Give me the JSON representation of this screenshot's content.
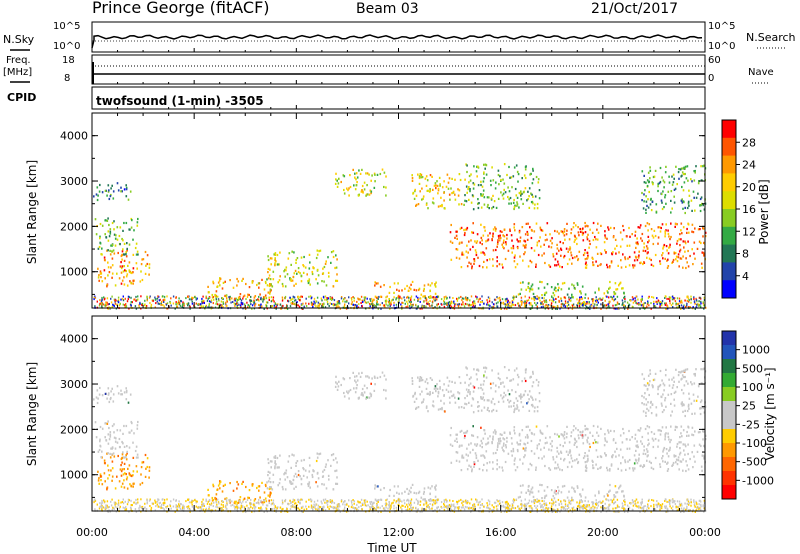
{
  "header": {
    "station": "Prince George (fitACF)",
    "beam": "Beam 03",
    "date": "21/Oct/2017"
  },
  "top_panels": {
    "nsky_label": "N.Sky",
    "nsky_ticks": [
      "10^5",
      "10^0"
    ],
    "nsearch_label": "N.Search",
    "nsearch_ticks": [
      "10^5",
      "10^0"
    ],
    "freq_label": "Freq.",
    "freq_unit": "[MHz]",
    "freq_ticks": [
      "18",
      "8"
    ],
    "nave_label": "Nave",
    "nave_ticks": [
      "60",
      "0"
    ],
    "cpid_label": "CPID",
    "cpid_text": "twofsound (1-min) -3505"
  },
  "axes": {
    "ylabel": "Slant Range [km]",
    "xlabel": "Time UT",
    "y_ticks": [
      1000,
      2000,
      3000,
      4000
    ],
    "x_ticks": [
      "00:00",
      "04:00",
      "08:00",
      "12:00",
      "16:00",
      "20:00",
      "00:00"
    ]
  },
  "power_colorbar": {
    "label": "Power [dB]",
    "ticks": [
      "28",
      "24",
      "20",
      "16",
      "12",
      "8",
      "4"
    ],
    "colors": [
      "#ff0000",
      "#ff5500",
      "#ff9900",
      "#ffcc00",
      "#dddd00",
      "#88cc22",
      "#33aa44",
      "#227755",
      "#2244aa",
      "#0000ff"
    ]
  },
  "velocity_colorbar": {
    "label": "Velocity [m s⁻¹]",
    "ticks": [
      "1000",
      "500",
      "100",
      "25",
      "-25",
      "-100",
      "-500",
      "-1000"
    ],
    "colors": [
      "#2233aa",
      "#2255bb",
      "#227744",
      "#33aa33",
      "#88cc22",
      "#c8c8c8",
      "#c8c8c8",
      "#ffcc00",
      "#ff9900",
      "#ff6600",
      "#ff3300",
      "#ff0000"
    ]
  },
  "chart_data": {
    "type": "heatmap",
    "x_range_hours": [
      0,
      24
    ],
    "y_range_km": [
      200,
      4500
    ],
    "power_scatter_regions": [
      {
        "t0": 0.2,
        "t1": 2.3,
        "r0": 700,
        "r1": 1500,
        "p": 22
      },
      {
        "t0": 0.1,
        "t1": 1.8,
        "r0": 1400,
        "r1": 2200,
        "p": 12
      },
      {
        "t0": 0.0,
        "t1": 1.5,
        "r0": 2600,
        "r1": 3000,
        "p": 8
      },
      {
        "t0": 4.5,
        "t1": 7.0,
        "r0": 400,
        "r1": 900,
        "p": 20
      },
      {
        "t0": 6.8,
        "t1": 9.6,
        "r0": 700,
        "r1": 1500,
        "p": 16
      },
      {
        "t0": 9.5,
        "t1": 11.5,
        "r0": 2700,
        "r1": 3300,
        "p": 16
      },
      {
        "t0": 11.0,
        "t1": 13.5,
        "r0": 400,
        "r1": 800,
        "p": 20
      },
      {
        "t0": 12.5,
        "t1": 14.5,
        "r0": 2400,
        "r1": 3200,
        "p": 18
      },
      {
        "t0": 14.0,
        "t1": 24.0,
        "r0": 1100,
        "r1": 2100,
        "p": 24
      },
      {
        "t0": 14.5,
        "t1": 17.5,
        "r0": 2400,
        "r1": 3400,
        "p": 12
      },
      {
        "t0": 16.5,
        "t1": 21.0,
        "r0": 500,
        "r1": 800,
        "p": 14
      },
      {
        "t0": 21.5,
        "t1": 24.0,
        "r0": 2300,
        "r1": 3400,
        "p": 10
      }
    ]
  }
}
